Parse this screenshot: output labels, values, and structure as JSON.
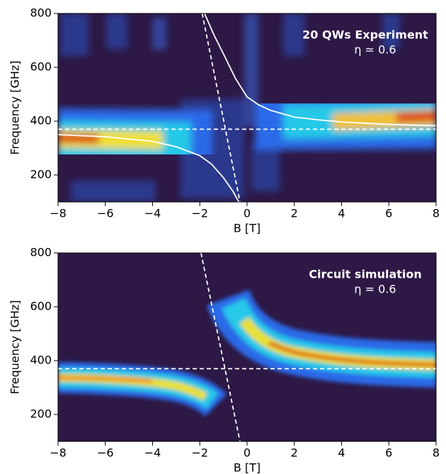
{
  "chart_data": [
    {
      "type": "line",
      "xlabel": "B [T]",
      "ylabel": "Frequency [GHz]",
      "annotations": [
        "20 QWs Experiment",
        "η ≃ 0.6"
      ],
      "xlim": [
        -8,
        8
      ],
      "ylim": [
        100,
        800
      ],
      "xticks": [
        {
          "value": -8,
          "label": "−8"
        },
        {
          "value": -6,
          "label": "−6"
        },
        {
          "value": -4,
          "label": "−4"
        },
        {
          "value": -2,
          "label": "−2"
        },
        0,
        2,
        4,
        6,
        8
      ],
      "yticks": [
        200,
        400,
        600,
        800
      ],
      "series": [
        {
          "color": "#ffffff",
          "dash": true,
          "x": [
            -8,
            8
          ],
          "values": [
            370,
            370
          ]
        },
        {
          "color": "#ffffff",
          "dash": true,
          "x": [
            -1.9,
            -0.3
          ],
          "values": [
            800,
            100
          ]
        },
        {
          "color": "#ffffff",
          "dash": false,
          "x": [
            -8,
            -6,
            -4,
            -3,
            -2,
            -1.5,
            -1,
            -0.6,
            -0.35
          ],
          "values": [
            350,
            342,
            325,
            305,
            272,
            240,
            190,
            140,
            100
          ]
        },
        {
          "color": "#ffffff",
          "dash": false,
          "x": [
            -1.8,
            -1.4,
            -1,
            -0.5,
            0,
            0.5,
            1,
            2,
            3,
            4,
            6,
            8
          ],
          "values": [
            800,
            720,
            650,
            560,
            490,
            460,
            440,
            415,
            405,
            397,
            388,
            383
          ]
        }
      ]
    },
    {
      "type": "line",
      "xlabel": "B [T]",
      "ylabel": "Frequency [GHz]",
      "annotations": [
        "Circuit simulation",
        "η = 0.6"
      ],
      "xlim": [
        -8,
        8
      ],
      "ylim": [
        100,
        800
      ],
      "xticks": [
        {
          "value": -8,
          "label": "−8"
        },
        {
          "value": -6,
          "label": "−6"
        },
        {
          "value": -4,
          "label": "−4"
        },
        {
          "value": -2,
          "label": "−2"
        },
        0,
        2,
        4,
        6,
        8
      ],
      "yticks": [
        200,
        400,
        600,
        800
      ],
      "series": [
        {
          "color": "#ffffff",
          "dash": true,
          "x": [
            -8,
            8
          ],
          "values": [
            370,
            370
          ]
        },
        {
          "color": "#ffffff",
          "dash": true,
          "x": [
            -1.95,
            -0.3
          ],
          "values": [
            800,
            100
          ]
        }
      ]
    }
  ]
}
